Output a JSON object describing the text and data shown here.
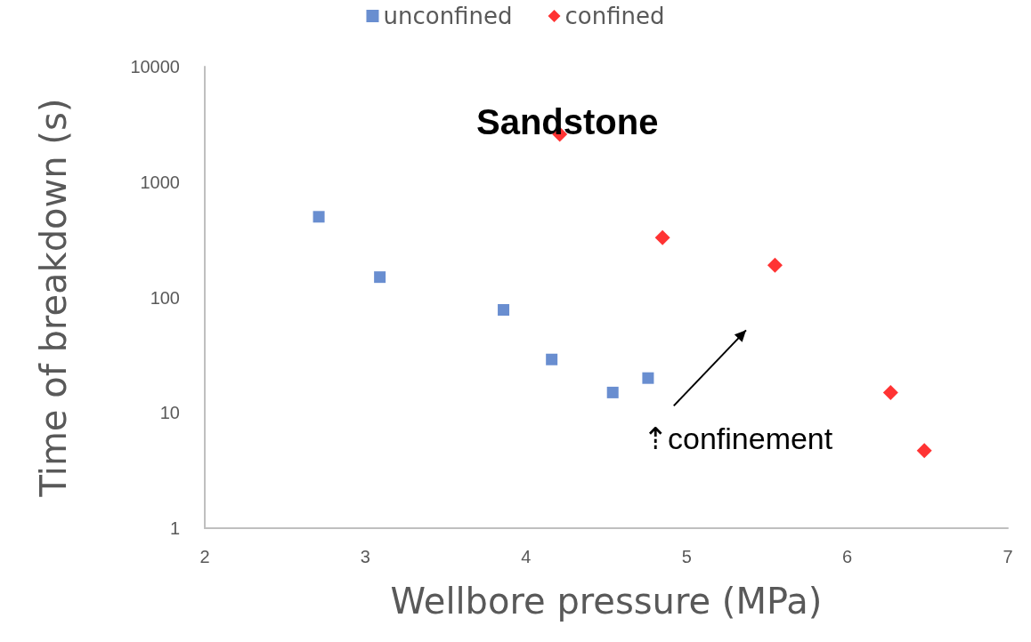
{
  "chart_data": {
    "type": "scatter",
    "title": "Sandstone",
    "xlabel": "Wellbore pressure (MPa)",
    "ylabel": "Time of breakdown (s)",
    "xlim": [
      2,
      7
    ],
    "xticks": [
      2,
      3,
      4,
      5,
      6,
      7
    ],
    "ylim": [
      1,
      10000
    ],
    "yticks": [
      1,
      10,
      100,
      1000,
      10000
    ],
    "log": "y",
    "grid": false,
    "legend": "top",
    "annotations": [
      "⇡confinement"
    ],
    "series": [
      {
        "name": "unconfined",
        "color": "#4472c4",
        "marker": "square",
        "x": [
          2.71,
          3.09,
          3.86,
          4.16,
          4.54,
          4.76
        ],
        "values": [
          500,
          150,
          78,
          29,
          15,
          20
        ]
      },
      {
        "name": "confined",
        "color": "#ff0000",
        "marker": "diamond",
        "x": [
          4.21,
          4.85,
          5.55,
          6.27,
          6.48
        ],
        "values": [
          2600,
          330,
          190,
          15,
          4.7
        ]
      }
    ]
  }
}
